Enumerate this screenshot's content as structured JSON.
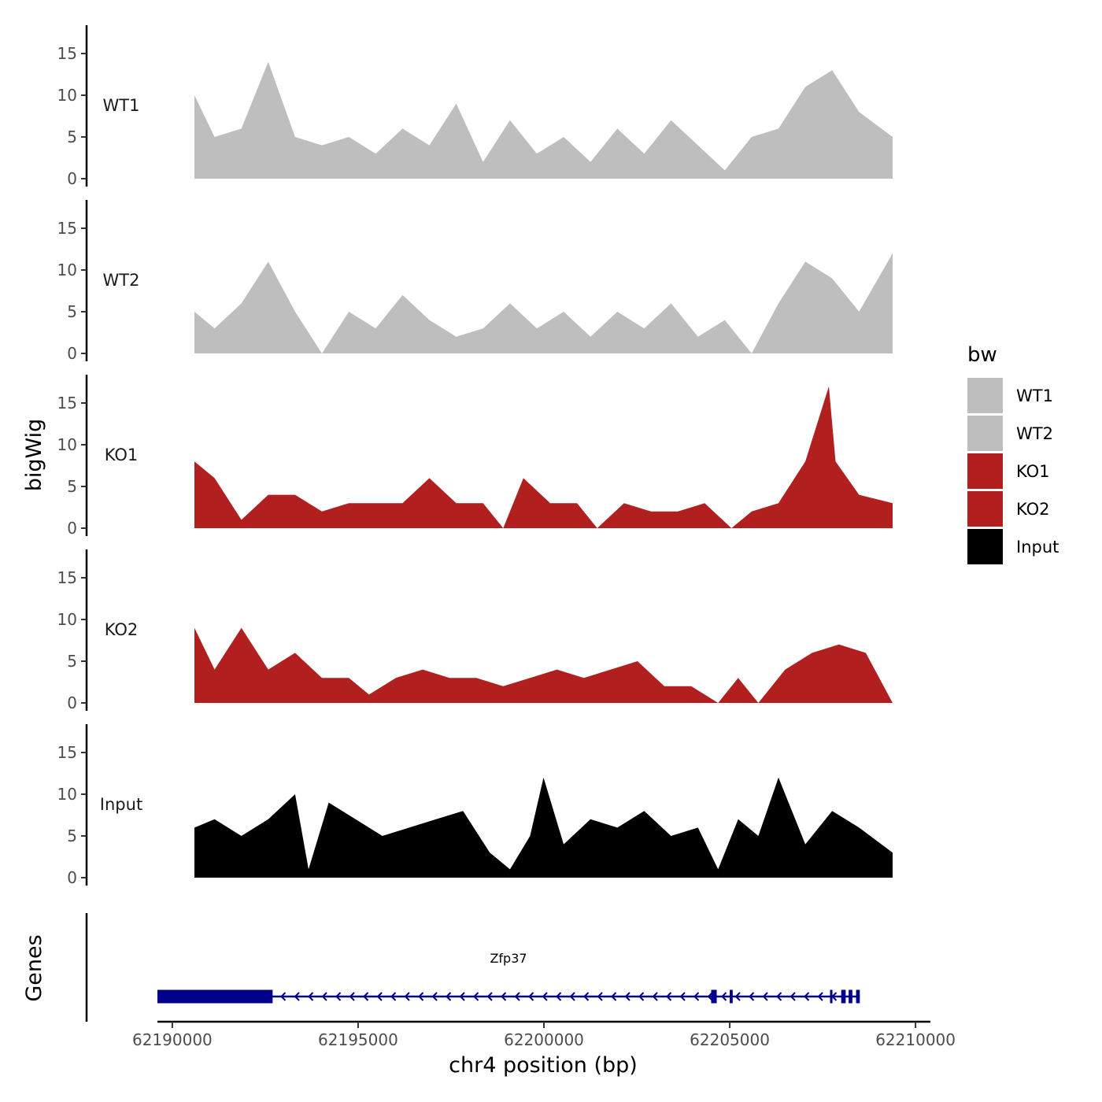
{
  "chart_data": {
    "type": "area",
    "title": "",
    "ylabel": "bigWig",
    "genes_label": "Genes",
    "xlabel": "chr4 position (bp)",
    "xlim": [
      62189600,
      62210400
    ],
    "ylim": [
      0,
      18
    ],
    "y_ticks": [
      "0",
      "5",
      "10",
      "15"
    ],
    "x_ticks": [
      {
        "value": 62190000,
        "label": "62190000"
      },
      {
        "value": 62195000,
        "label": "62195000"
      },
      {
        "value": 62200000,
        "label": "62200000"
      },
      {
        "value": 62205000,
        "label": "62205000"
      },
      {
        "value": 62210000,
        "label": "62210000"
      }
    ],
    "legend": {
      "title": "bw",
      "items": [
        {
          "label": "WT1",
          "color": "#bebebe"
        },
        {
          "label": "WT2",
          "color": "#bebebe"
        },
        {
          "label": "KO1",
          "color": "#b21f1f"
        },
        {
          "label": "KO2",
          "color": "#b21f1f"
        },
        {
          "label": "Input",
          "color": "#000000"
        }
      ]
    },
    "series": [
      {
        "name": "WT1",
        "color": "#bebebe",
        "x": [
          62189600,
          62190200,
          62191000,
          62191800,
          62192600,
          62193400,
          62194200,
          62195000,
          62195800,
          62196600,
          62197400,
          62198200,
          62199000,
          62199800,
          62200600,
          62201400,
          62202200,
          62203000,
          62203800,
          62204600,
          62205400,
          62206200,
          62207000,
          62207800,
          62208600,
          62209400,
          62210400
        ],
        "values": [
          10,
          5,
          6,
          14,
          5,
          4,
          5,
          3,
          6,
          4,
          9,
          2,
          7,
          3,
          5,
          2,
          6,
          3,
          7,
          4,
          1,
          5,
          6,
          11,
          13,
          8,
          5
        ]
      },
      {
        "name": "WT2",
        "color": "#bebebe",
        "x": [
          62189600,
          62190200,
          62191000,
          62191800,
          62192600,
          62193400,
          62194200,
          62195000,
          62195800,
          62196600,
          62197400,
          62198200,
          62199000,
          62199800,
          62200600,
          62201400,
          62202200,
          62203000,
          62203800,
          62204600,
          62205400,
          62206200,
          62207000,
          62207800,
          62208600,
          62209400,
          62210400
        ],
        "values": [
          5,
          3,
          6,
          11,
          5,
          0,
          5,
          3,
          7,
          4,
          2,
          3,
          6,
          3,
          5,
          2,
          5,
          3,
          6,
          2,
          4,
          0,
          6,
          11,
          9,
          5,
          12
        ]
      },
      {
        "name": "KO1",
        "color": "#b21f1f",
        "x": [
          62189600,
          62190200,
          62191000,
          62191800,
          62192600,
          62193400,
          62194200,
          62195000,
          62195800,
          62196600,
          62197400,
          62198200,
          62198800,
          62199400,
          62200200,
          62201000,
          62201600,
          62202400,
          62203200,
          62204000,
          62204800,
          62205600,
          62206200,
          62207000,
          62207800,
          62208500,
          62208700,
          62209400,
          62210400
        ],
        "values": [
          8,
          6,
          1,
          4,
          4,
          2,
          3,
          3,
          3,
          6,
          3,
          3,
          0,
          6,
          3,
          3,
          0,
          3,
          2,
          2,
          3,
          0,
          2,
          3,
          8,
          17,
          8,
          4,
          3
        ]
      },
      {
        "name": "KO2",
        "color": "#b21f1f",
        "x": [
          62189600,
          62190200,
          62191000,
          62191800,
          62192600,
          62193400,
          62194200,
          62194800,
          62195600,
          62196400,
          62197200,
          62198000,
          62198800,
          62199600,
          62200400,
          62201200,
          62202000,
          62202800,
          62203600,
          62204400,
          62205200,
          62205800,
          62206400,
          62207200,
          62208000,
          62208800,
          62209600,
          62210400
        ],
        "values": [
          9,
          4,
          9,
          4,
          6,
          3,
          3,
          1,
          3,
          4,
          3,
          3,
          2,
          3,
          4,
          3,
          4,
          5,
          2,
          2,
          0,
          3,
          0,
          4,
          6,
          7,
          6,
          0
        ]
      },
      {
        "name": "Input",
        "color": "#000000",
        "x": [
          62189600,
          62190200,
          62191000,
          62191800,
          62192600,
          62193000,
          62193600,
          62194400,
          62195200,
          62196000,
          62196800,
          62197600,
          62198400,
          62199000,
          62199600,
          62200000,
          62200600,
          62201400,
          62202200,
          62203000,
          62203800,
          62204600,
          62205200,
          62205800,
          62206400,
          62207000,
          62207800,
          62208600,
          62209400,
          62210400
        ],
        "values": [
          6,
          7,
          5,
          7,
          10,
          1,
          9,
          7,
          5,
          6,
          7,
          8,
          3,
          1,
          5,
          12,
          4,
          7,
          6,
          8,
          5,
          6,
          1,
          7,
          5,
          12,
          4,
          8,
          6,
          3
        ]
      }
    ],
    "gene": {
      "name": "Zfp37",
      "strand": "-",
      "start": 62189600,
      "end": 62208500,
      "exons": [
        [
          62189600,
          62192700
        ],
        [
          62204500,
          62204650
        ],
        [
          62205000,
          62205080
        ],
        [
          62207700,
          62207760
        ],
        [
          62208000,
          62208120
        ],
        [
          62208200,
          62208300
        ],
        [
          62208400,
          62208500
        ]
      ]
    }
  }
}
